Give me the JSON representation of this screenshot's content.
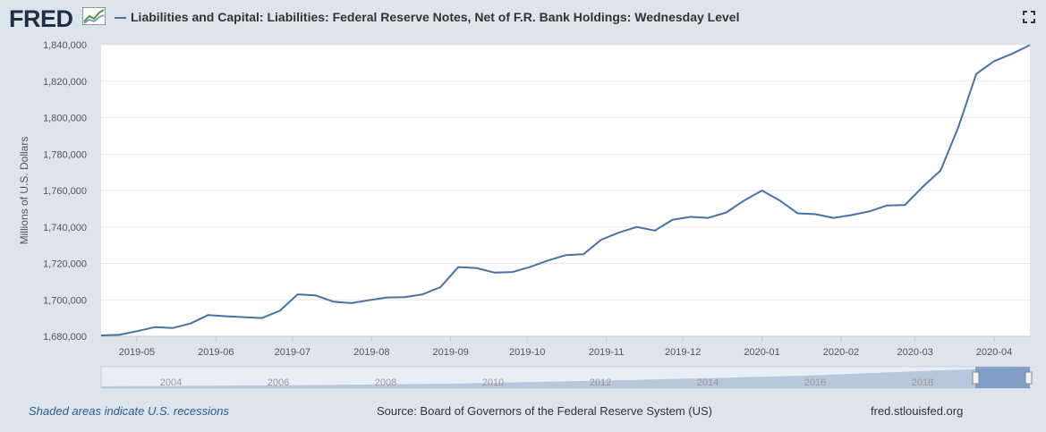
{
  "header": {
    "logo_text": "FRED",
    "title": "Liabilities and Capital: Liabilities: Federal Reserve Notes, Net of F.R. Bank Holdings: Wednesday Level"
  },
  "footer": {
    "recession_note": "Shaded areas indicate U.S. recessions",
    "source": "Source: Board of Governors of the Federal Reserve System (US)",
    "site": "fred.stlouisfed.org"
  },
  "navigator": {
    "year_labels": [
      "2004",
      "2006",
      "2008",
      "2010",
      "2012",
      "2014",
      "2016",
      "2018"
    ]
  },
  "colors": {
    "series": "#4572a7",
    "background": "#dce4ec",
    "plot": "#ffffff"
  },
  "chart_data": {
    "type": "line",
    "title": "Liabilities and Capital: Liabilities: Federal Reserve Notes, Net of F.R. Bank Holdings: Wednesday Level",
    "xlabel": "",
    "ylabel": "Millions of U.S. Dollars",
    "ylim": [
      1680000,
      1840000
    ],
    "yticks": [
      1680000,
      1700000,
      1720000,
      1740000,
      1760000,
      1780000,
      1800000,
      1820000,
      1840000
    ],
    "ytick_labels": [
      "1,680,000",
      "1,700,000",
      "1,720,000",
      "1,740,000",
      "1,760,000",
      "1,780,000",
      "1,800,000",
      "1,820,000",
      "1,840,000"
    ],
    "xtick_labels": [
      "2019-05",
      "2019-06",
      "2019-07",
      "2019-08",
      "2019-09",
      "2019-10",
      "2019-11",
      "2019-12",
      "2020-01",
      "2020-02",
      "2020-03",
      "2020-04"
    ],
    "grid": true,
    "series": [
      {
        "name": "Federal Reserve Notes, Net of F.R. Bank Holdings",
        "x": [
          "2019-04-17",
          "2019-04-24",
          "2019-05-01",
          "2019-05-08",
          "2019-05-15",
          "2019-05-22",
          "2019-05-29",
          "2019-06-05",
          "2019-06-12",
          "2019-06-19",
          "2019-06-26",
          "2019-07-03",
          "2019-07-10",
          "2019-07-17",
          "2019-07-24",
          "2019-07-31",
          "2019-08-07",
          "2019-08-14",
          "2019-08-21",
          "2019-08-28",
          "2019-09-04",
          "2019-09-11",
          "2019-09-18",
          "2019-09-25",
          "2019-10-02",
          "2019-10-09",
          "2019-10-16",
          "2019-10-23",
          "2019-10-30",
          "2019-11-06",
          "2019-11-13",
          "2019-11-20",
          "2019-11-27",
          "2019-12-04",
          "2019-12-11",
          "2019-12-18",
          "2019-12-25",
          "2020-01-01",
          "2020-01-08",
          "2020-01-15",
          "2020-01-22",
          "2020-01-29",
          "2020-02-05",
          "2020-02-12",
          "2020-02-19",
          "2020-02-26",
          "2020-03-04",
          "2020-03-11",
          "2020-03-18",
          "2020-03-25",
          "2020-04-01",
          "2020-04-08",
          "2020-04-15"
        ],
        "values": [
          1680500,
          1680800,
          1682800,
          1685000,
          1684500,
          1687000,
          1691700,
          1691000,
          1690500,
          1690000,
          1694000,
          1703000,
          1702500,
          1699000,
          1698200,
          1699800,
          1701300,
          1701500,
          1703000,
          1707000,
          1718000,
          1717500,
          1715000,
          1715200,
          1718000,
          1721500,
          1724500,
          1725000,
          1733000,
          1737000,
          1740000,
          1738000,
          1744000,
          1745500,
          1745000,
          1748000,
          1754500,
          1760000,
          1754500,
          1747500,
          1747000,
          1745000,
          1746500,
          1748500,
          1751800,
          1752000,
          1762000,
          1771000,
          1795000,
          1824000,
          1831000,
          1835000,
          1839800
        ]
      }
    ]
  }
}
